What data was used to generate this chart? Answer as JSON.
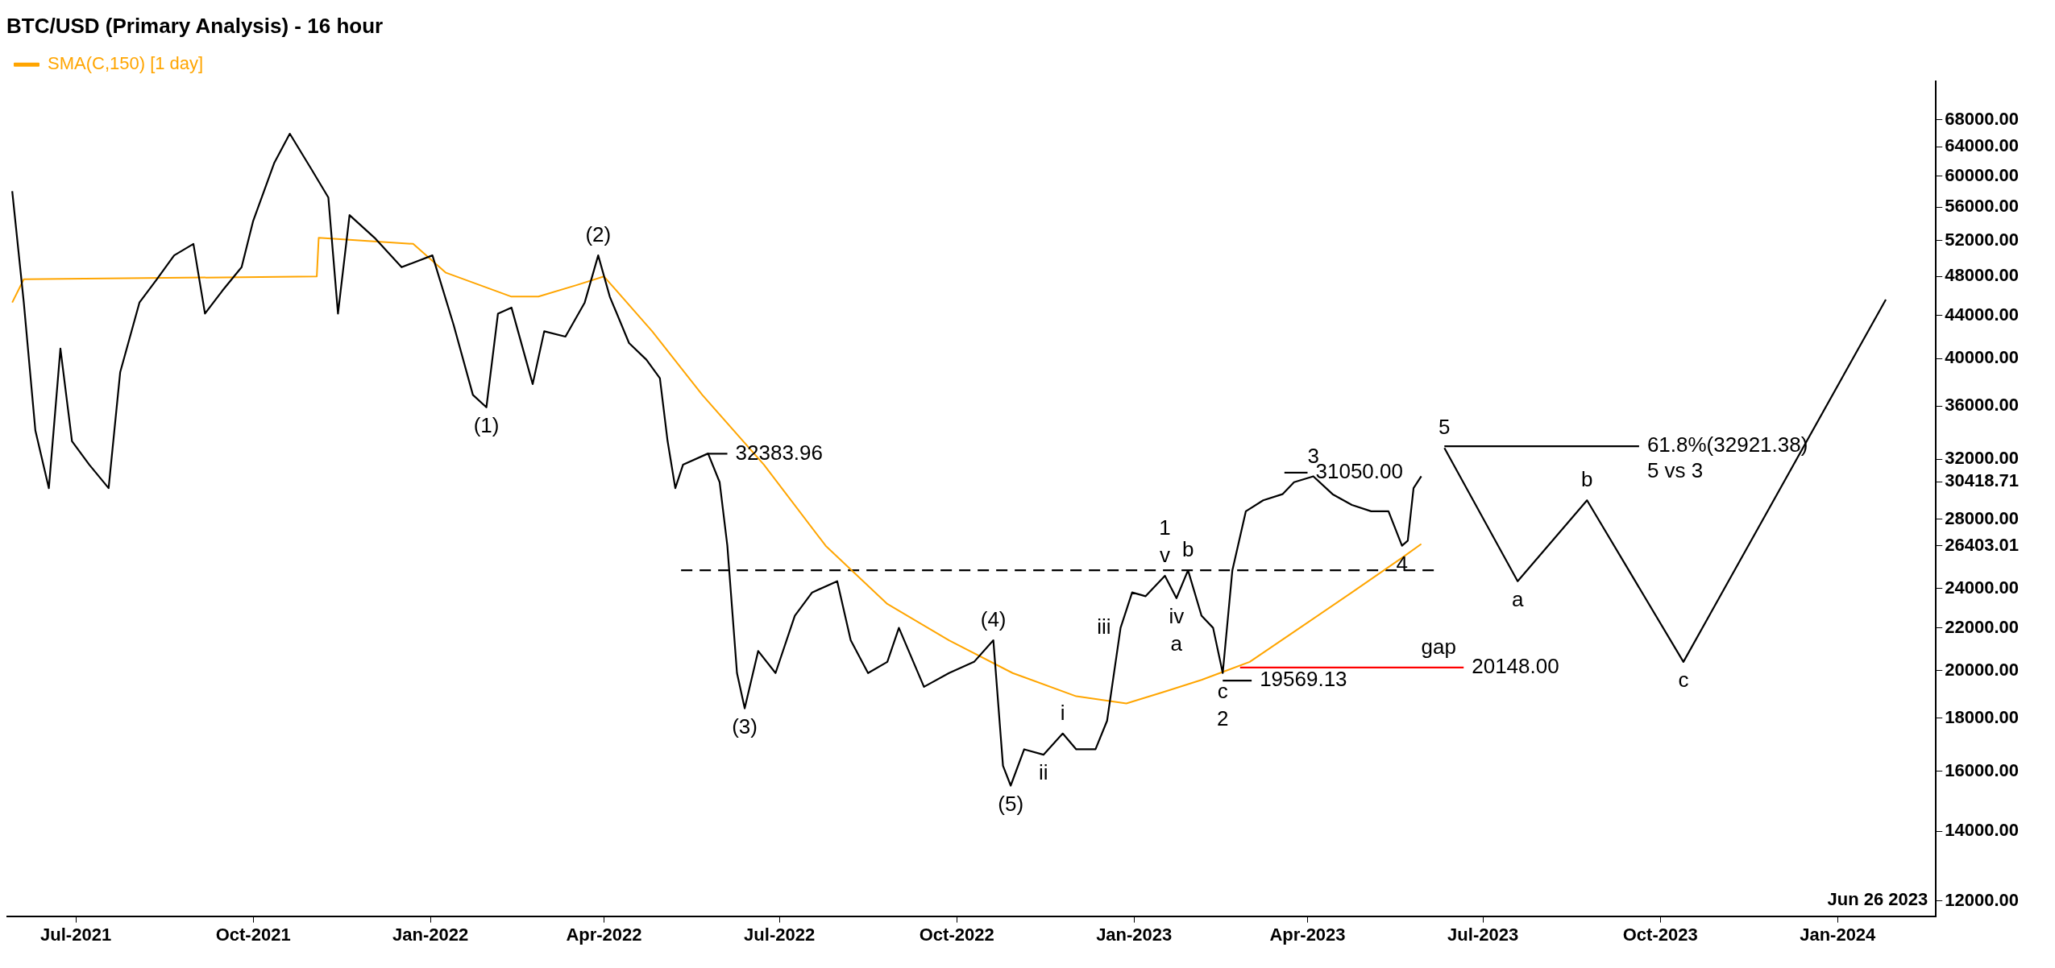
{
  "chart_data": {
    "type": "line",
    "title": "BTC/USD (Primary Analysis) - 16 hour",
    "legend": "top left",
    "grid": false,
    "log": "y",
    "marker": "none",
    "xlim": [
      "2021-05-26",
      "2024-02-21"
    ],
    "xticks": [
      {
        "value": "2021-07-01",
        "label": "Jul-2021"
      },
      {
        "value": "2021-10-01",
        "label": "Oct-2021"
      },
      {
        "value": "2022-01-01",
        "label": "Jan-2022"
      },
      {
        "value": "2022-04-01",
        "label": "Apr-2022"
      },
      {
        "value": "2022-07-01",
        "label": "Jul-2022"
      },
      {
        "value": "2022-10-01",
        "label": "Oct-2022"
      },
      {
        "value": "2023-01-01",
        "label": "Jan-2023"
      },
      {
        "value": "2023-04-01",
        "label": "Apr-2023"
      },
      {
        "value": "2023-07-01",
        "label": "Jul-2023"
      },
      {
        "value": "2023-10-01",
        "label": "Oct-2023"
      },
      {
        "value": "2024-01-01",
        "label": "Jan-2024"
      }
    ],
    "ylim": [
      11600,
      74000
    ],
    "yticks": [
      {
        "value": 12000,
        "label": "12000.00"
      },
      {
        "value": 14000,
        "label": "14000.00"
      },
      {
        "value": 16000,
        "label": "16000.00"
      },
      {
        "value": 18000,
        "label": "18000.00"
      },
      {
        "value": 20000,
        "label": "20000.00"
      },
      {
        "value": 24000,
        "label": "24000.00"
      },
      {
        "value": 22000,
        "label": "22000.00"
      },
      {
        "value": 28000,
        "label": "28000.00"
      },
      {
        "value": 32000,
        "label": "32000.00"
      },
      {
        "value": 36000,
        "label": "36000.00"
      },
      {
        "value": 40000,
        "label": "40000.00"
      },
      {
        "value": 44000,
        "label": "44000.00"
      },
      {
        "value": 48000,
        "label": "48000.00"
      },
      {
        "value": 52000,
        "label": "52000.00"
      },
      {
        "value": 56000,
        "label": "56000.00"
      },
      {
        "value": 60000,
        "label": "60000.00"
      },
      {
        "value": 64000,
        "label": "64000.00"
      },
      {
        "value": 68000,
        "label": "68000.00"
      },
      {
        "value": 30418.71,
        "label": "30418.71"
      },
      {
        "value": 26403.01,
        "label": "26403.01"
      }
    ],
    "series": [
      {
        "color": "#000000",
        "x": [
          "2021-05-29",
          "2021-06-04",
          "2021-06-10",
          "2021-06-17",
          "2021-06-23",
          "2021-06-29",
          "2021-07-08",
          "2021-07-18",
          "2021-07-24",
          "2021-08-03",
          "2021-08-12",
          "2021-08-21",
          "2021-08-31",
          "2021-09-06",
          "2021-09-15",
          "2021-09-25",
          "2021-10-01",
          "2021-10-12",
          "2021-10-20",
          "2021-10-31",
          "2021-11-09",
          "2021-11-14",
          "2021-11-20",
          "2021-12-03",
          "2021-12-17",
          "2022-01-02",
          "2022-01-13",
          "2022-01-23",
          "2022-01-30",
          "2022-02-05",
          "2022-02-12",
          "2022-02-23",
          "2022-03-01",
          "2022-03-12",
          "2022-03-22",
          "2022-03-29",
          "2022-04-04",
          "2022-04-14",
          "2022-04-23",
          "2022-04-30",
          "2022-05-04",
          "2022-05-08",
          "2022-05-12",
          "2022-05-25",
          "2022-05-31",
          "2022-06-04",
          "2022-06-09",
          "2022-06-13",
          "2022-06-20",
          "2022-06-29",
          "2022-07-09",
          "2022-07-18",
          "2022-07-31",
          "2022-08-07",
          "2022-08-16",
          "2022-08-26",
          "2022-09-01",
          "2022-09-14",
          "2022-09-27",
          "2022-10-10",
          "2022-10-20",
          "2022-10-25",
          "2022-10-29",
          "2022-11-05",
          "2022-11-15",
          "2022-11-25",
          "2022-12-02",
          "2022-12-12",
          "2022-12-18",
          "2022-12-25",
          "2022-12-31",
          "2023-01-07",
          "2023-01-17",
          "2023-01-23",
          "2023-01-29",
          "2023-02-05",
          "2023-02-11",
          "2023-02-16",
          "2023-02-21",
          "2023-02-28",
          "2023-03-09",
          "2023-03-19",
          "2023-03-25",
          "2023-04-04",
          "2023-04-14",
          "2023-04-24",
          "2023-05-04",
          "2023-05-13",
          "2023-05-20",
          "2023-05-23",
          "2023-05-26",
          "2023-05-30"
        ],
        "values": [
          58000,
          45300,
          34100,
          30000,
          40900,
          33300,
          31600,
          30000,
          38800,
          45300,
          47700,
          50300,
          51600,
          44200,
          46500,
          49000,
          54300,
          61800,
          65900,
          61000,
          57200,
          44200,
          55000,
          52300,
          49000,
          50300,
          43100,
          36900,
          35900,
          44200,
          44800,
          37800,
          42500,
          42000,
          45300,
          50300,
          45900,
          41400,
          39900,
          38300,
          33300,
          30000,
          31600,
          32400,
          30400,
          26400,
          19900,
          18400,
          20900,
          19900,
          22600,
          23800,
          24400,
          21400,
          19900,
          20400,
          22000,
          19300,
          19900,
          20400,
          21400,
          16200,
          15500,
          16800,
          16600,
          17400,
          16800,
          16800,
          17900,
          22000,
          23800,
          23600,
          24700,
          23500,
          25000,
          22600,
          22000,
          19900,
          25000,
          28500,
          29200,
          29600,
          30400,
          30800,
          29600,
          28900,
          28500,
          28500,
          26400,
          26700,
          30000,
          30800
        ]
      },
      {
        "name": "SMA(C,150) [1 day]",
        "color": "#ffa500",
        "x": [
          "2021-05-29",
          "2021-06-04",
          "2021-11-03",
          "2021-11-04",
          "2021-12-23",
          "2022-01-09",
          "2022-02-12",
          "2022-02-26",
          "2022-03-18",
          "2022-04-01",
          "2022-04-26",
          "2022-05-22",
          "2022-06-23",
          "2022-07-25",
          "2022-08-26",
          "2022-09-27",
          "2022-10-30",
          "2022-12-02",
          "2022-12-28",
          "2023-01-17",
          "2023-02-05",
          "2023-03-02",
          "2023-03-28",
          "2023-04-24",
          "2023-05-20",
          "2023-05-30"
        ],
        "values": [
          45300,
          47700,
          48000,
          52300,
          51600,
          48400,
          45900,
          45900,
          47100,
          48000,
          42500,
          36900,
          31600,
          26400,
          23200,
          21400,
          19900,
          18900,
          18600,
          19100,
          19600,
          20400,
          22000,
          23800,
          25700,
          26500
        ]
      },
      {
        "color": "#000000",
        "x": [
          "2023-06-11",
          "2023-07-19",
          "2023-08-24",
          "2023-10-13",
          "2024-01-26"
        ],
        "values": [
          32800,
          24400,
          29200,
          20400,
          45600
        ]
      },
      {
        "color": "#000000",
        "line_style": "dashed",
        "x": [
          "2022-05-11",
          "2023-06-08"
        ],
        "values": [
          25000,
          25000
        ]
      },
      {
        "color": "#000000",
        "x": [
          "2022-05-25",
          "2022-06-04"
        ],
        "values": [
          32383.96,
          32383.96
        ]
      },
      {
        "color": "#000000",
        "x": [
          "2023-03-20",
          "2023-04-01"
        ],
        "values": [
          31050,
          31050
        ]
      },
      {
        "color": "#000000",
        "x": [
          "2023-02-16",
          "2023-03-03"
        ],
        "values": [
          19569.13,
          19569.13
        ]
      },
      {
        "color": "#ff0000",
        "x": [
          "2023-02-25",
          "2023-06-21"
        ],
        "values": [
          20148,
          20148
        ]
      },
      {
        "color": "#000000",
        "x": [
          "2023-06-11",
          "2023-09-20"
        ],
        "values": [
          32921.38,
          32921.38
        ]
      }
    ],
    "annotations": [
      {
        "text": "(1)",
        "x": "2022-01-30",
        "y": 35900
      },
      {
        "text": "(2)",
        "x": "2022-03-29",
        "y": 50300
      },
      {
        "text": "(3)",
        "x": "2022-06-13",
        "y": 18400
      },
      {
        "text": "(4)",
        "x": "2022-10-20",
        "y": 21400
      },
      {
        "text": "(5)",
        "x": "2022-10-29",
        "y": 15500
      },
      {
        "text": "v",
        "x": "2023-01-17",
        "y": 24700
      },
      {
        "text": "1",
        "x": "2023-01-17",
        "y": 24700
      },
      {
        "text": "c",
        "x": "2023-02-16",
        "y": 19900
      },
      {
        "text": "2",
        "x": "2023-02-16",
        "y": 19900
      },
      {
        "text": "3",
        "x": "2023-04-04",
        "y": 30800
      },
      {
        "text": "4",
        "x": "2023-05-20",
        "y": 26400
      },
      {
        "text": "5",
        "x": "2023-06-11",
        "y": 32800
      },
      {
        "text": "i",
        "x": "2022-11-25",
        "y": 17400
      },
      {
        "text": "ii",
        "x": "2022-11-15",
        "y": 16600
      },
      {
        "text": "iii",
        "x": "2022-12-25",
        "y": 22000
      },
      {
        "text": "iv",
        "x": "2023-01-23",
        "y": 23500
      },
      {
        "text": "a",
        "x": "2023-01-23",
        "y": 23500
      },
      {
        "text": "b",
        "x": "2023-01-29",
        "y": 25000
      },
      {
        "text": "a",
        "x": "2023-07-19",
        "y": 24400
      },
      {
        "text": "b",
        "x": "2023-08-24",
        "y": 29200
      },
      {
        "text": "c",
        "x": "2023-10-13",
        "y": 20400
      },
      {
        "text": "gap",
        "x": "2023-06-08",
        "y": 20148
      },
      {
        "text": "32383.96",
        "x": "2022-06-04",
        "y": 32383.96
      },
      {
        "text": "31050.00",
        "x": "2023-04-01",
        "y": 31050
      },
      {
        "text": "19569.13",
        "x": "2023-03-03",
        "y": 19569.13
      },
      {
        "text": "20148.00",
        "x": "2023-06-21",
        "y": 20148
      },
      {
        "text": "61.8%(32921.38)",
        "x": "2023-09-20",
        "y": 32921.38
      },
      {
        "text": "5 vs 3",
        "x": "2023-09-20",
        "y": 32921.38
      },
      "Jun 26 2023"
    ]
  }
}
